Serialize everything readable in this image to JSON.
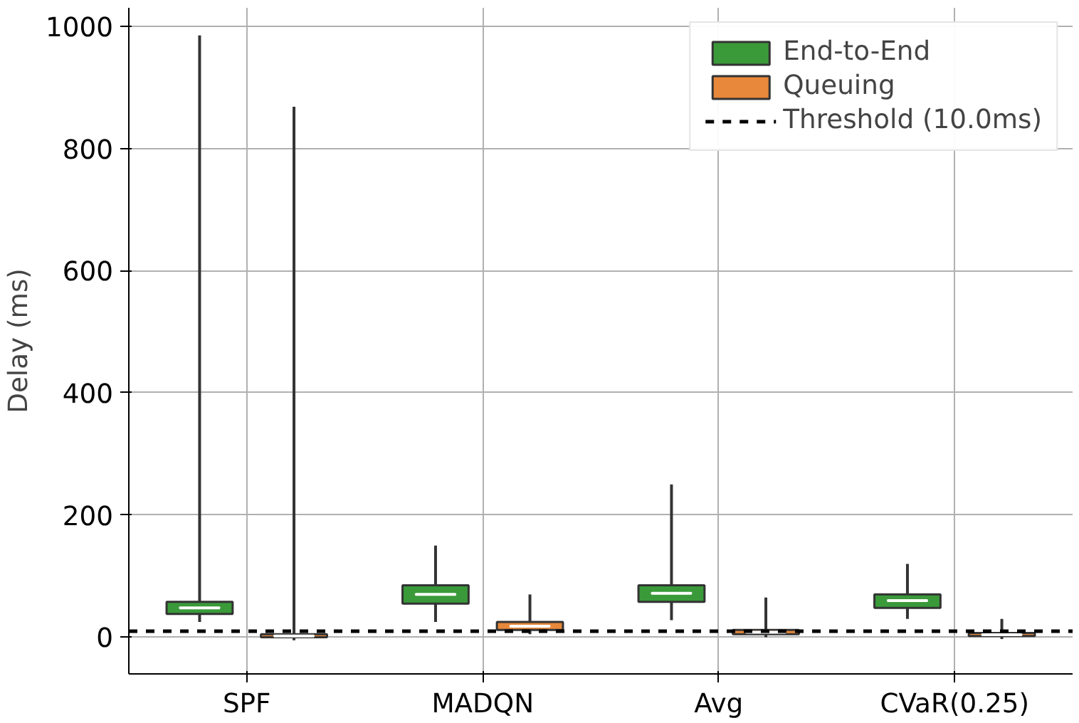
{
  "chart_data": {
    "type": "box",
    "ylabel": "Delay (ms)",
    "categories": [
      "SPF",
      "MADQN",
      "Avg",
      "CVaR(0.25)"
    ],
    "ylim": [
      -60,
      1030
    ],
    "yticks": [
      0,
      200,
      400,
      600,
      800,
      1000
    ],
    "grid": true,
    "legend": "top right",
    "series": [
      {
        "name": "End-to-End",
        "color": "#3a9a3a",
        "boxes": [
          {
            "low": 25,
            "q1": 38,
            "median": 48,
            "q3": 58,
            "high": 985
          },
          {
            "low": 25,
            "q1": 55,
            "median": 70,
            "q3": 85,
            "high": 150
          },
          {
            "low": 28,
            "q1": 58,
            "median": 72,
            "q3": 85,
            "high": 250
          },
          {
            "low": 30,
            "q1": 48,
            "median": 60,
            "q3": 70,
            "high": 120
          }
        ]
      },
      {
        "name": "Queuing",
        "color": "#e8883a",
        "boxes": [
          {
            "low": -5,
            "q1": 0,
            "median": 2,
            "q3": 5,
            "high": 868
          },
          {
            "low": 5,
            "q1": 12,
            "median": 18,
            "q3": 25,
            "high": 70
          },
          {
            "low": 0,
            "q1": 5,
            "median": 8,
            "q3": 12,
            "high": 65
          },
          {
            "low": -3,
            "q1": 2,
            "median": 4,
            "q3": 7,
            "high": 30
          }
        ]
      }
    ],
    "ref_lines": [
      {
        "axis": "y",
        "value": 10,
        "label": "Threshold (10.0ms)",
        "color": "#000000",
        "line_style": "dashed"
      }
    ]
  }
}
